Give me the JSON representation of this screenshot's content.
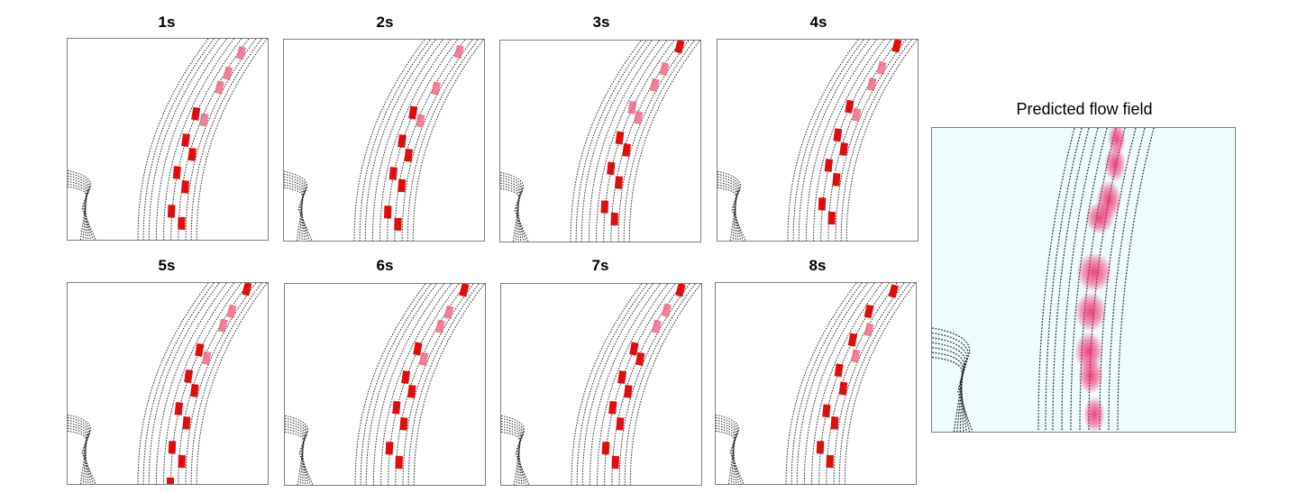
{
  "panels": [
    {
      "label": "1s"
    },
    {
      "label": "2s"
    },
    {
      "label": "3s"
    },
    {
      "label": "4s"
    },
    {
      "label": "5s"
    },
    {
      "label": "6s"
    },
    {
      "label": "7s"
    },
    {
      "label": "8s"
    }
  ],
  "flow_field": {
    "title": "Predicted flow field",
    "background_color": "#eefcfd"
  },
  "colors": {
    "lane_lines": "#222222",
    "vehicle": "#e00000",
    "vehicle_faded": "#f06080",
    "flow_blob": "#ee2266",
    "panel_border": "#7f7f7f"
  }
}
